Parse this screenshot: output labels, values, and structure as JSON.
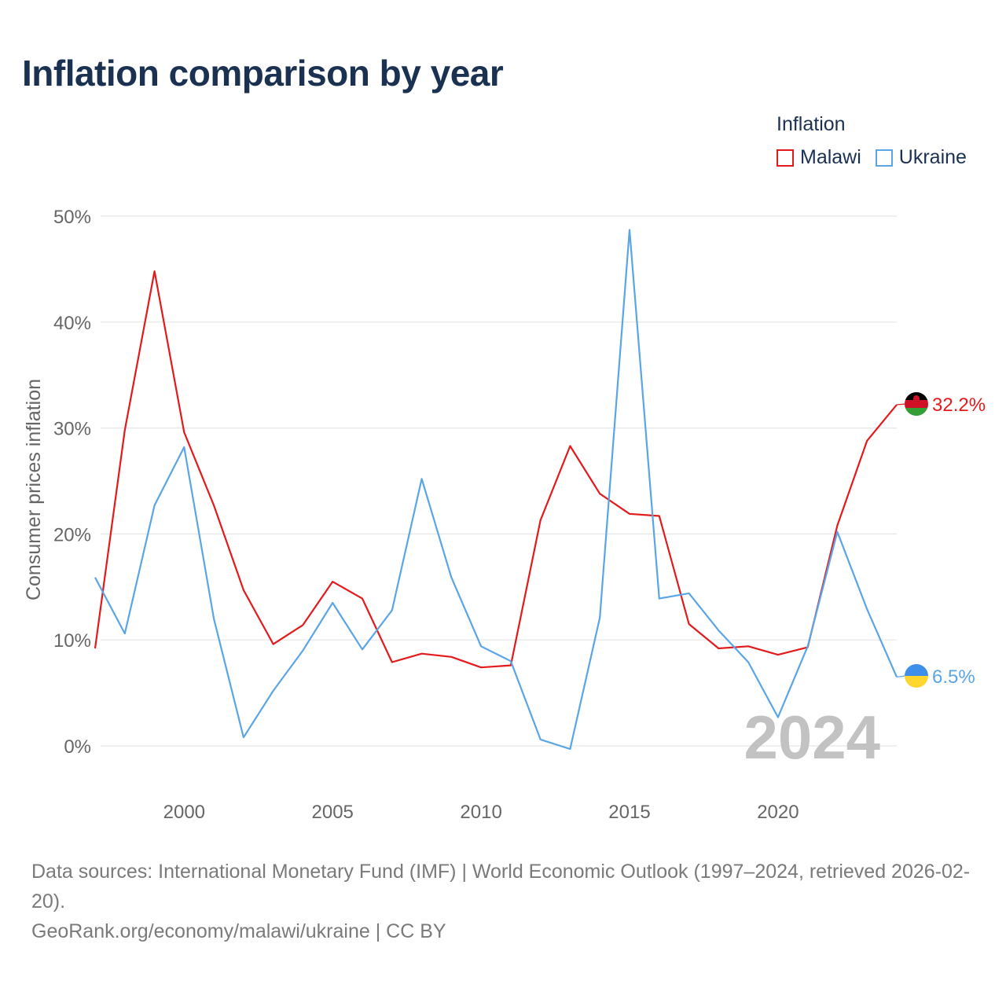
{
  "title": "Inflation comparison by year",
  "legend": {
    "title": "Inflation",
    "items": [
      {
        "label": "Malawi",
        "color": "#e31a1c"
      },
      {
        "label": "Ukraine",
        "color": "#5aa5e6"
      }
    ]
  },
  "footer": {
    "sources": "Data sources: International Monetary Fund (IMF) | World Economic Outlook (1997–2024, retrieved 2026-02-20).",
    "credit": "GeoRank.org/economy/malawi/ukraine | CC BY"
  },
  "chart_data": {
    "type": "line",
    "title": "Inflation comparison by year",
    "ylabel": "Consumer prices inflation",
    "xlabel": "",
    "ylim": [
      0,
      50
    ],
    "xlim": [
      1997,
      2024
    ],
    "yticks": [
      0,
      10,
      20,
      30,
      40,
      50
    ],
    "ytick_labels": [
      "0%",
      "10%",
      "20%",
      "30%",
      "40%",
      "50%"
    ],
    "xticks": [
      2000,
      2005,
      2010,
      2015,
      2020
    ],
    "xtick_labels": [
      "2000",
      "2005",
      "2010",
      "2015",
      "2020"
    ],
    "grid": true,
    "watermark": "2024",
    "x": [
      1997,
      1998,
      1999,
      2000,
      2001,
      2002,
      2003,
      2004,
      2005,
      2006,
      2007,
      2008,
      2009,
      2010,
      2011,
      2012,
      2013,
      2014,
      2015,
      2016,
      2017,
      2018,
      2019,
      2020,
      2021,
      2022,
      2023,
      2024
    ],
    "series": [
      {
        "name": "Malawi",
        "color": "#e31a1c",
        "end_label": "32.2%",
        "values": [
          9.2,
          29.8,
          44.8,
          29.6,
          22.7,
          14.7,
          9.6,
          11.4,
          15.5,
          13.9,
          7.9,
          8.7,
          8.4,
          7.4,
          7.6,
          21.3,
          28.3,
          23.8,
          21.9,
          21.7,
          11.5,
          9.2,
          9.4,
          8.6,
          9.3,
          20.8,
          28.8,
          32.2
        ]
      },
      {
        "name": "Ukraine",
        "color": "#5aa5e6",
        "end_label": "6.5%",
        "values": [
          15.9,
          10.6,
          22.7,
          28.2,
          12.0,
          0.8,
          5.2,
          9.0,
          13.5,
          9.1,
          12.8,
          25.2,
          15.9,
          9.4,
          8.0,
          0.6,
          -0.3,
          12.1,
          48.7,
          13.9,
          14.4,
          10.9,
          7.9,
          2.7,
          9.4,
          20.2,
          12.9,
          6.5
        ]
      }
    ]
  }
}
